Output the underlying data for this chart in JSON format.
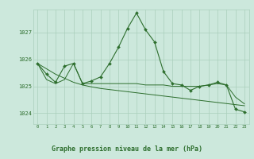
{
  "title": "Graphe pression niveau de la mer (hPa)",
  "bg_color": "#cce8dc",
  "grid_color": "#aacfbc",
  "line_color": "#2d6e2d",
  "ylim": [
    1023.6,
    1027.85
  ],
  "yticks": [
    1024,
    1025,
    1026,
    1027
  ],
  "xticks": [
    0,
    1,
    2,
    3,
    4,
    5,
    6,
    7,
    8,
    9,
    10,
    11,
    12,
    13,
    14,
    15,
    16,
    17,
    18,
    19,
    20,
    21,
    22,
    23
  ],
  "main_series": [
    1025.85,
    1025.45,
    1025.15,
    1025.75,
    1025.85,
    1025.1,
    1025.2,
    1025.35,
    1025.85,
    1026.45,
    1027.15,
    1027.72,
    1027.1,
    1026.65,
    1025.55,
    1025.1,
    1025.05,
    1024.85,
    1025.0,
    1025.05,
    1025.15,
    1025.05,
    1024.15,
    1024.05
  ],
  "trend_line": [
    1025.85,
    1025.65,
    1025.45,
    1025.3,
    1025.15,
    1025.05,
    1024.98,
    1024.92,
    1024.88,
    1024.84,
    1024.8,
    1024.76,
    1024.72,
    1024.68,
    1024.64,
    1024.6,
    1024.56,
    1024.52,
    1024.48,
    1024.44,
    1024.4,
    1024.36,
    1024.32,
    1024.28
  ],
  "flat_line": [
    1025.85,
    1025.25,
    1025.1,
    1025.25,
    1025.85,
    1025.1,
    1025.1,
    1025.1,
    1025.1,
    1025.1,
    1025.1,
    1025.1,
    1025.05,
    1025.05,
    1025.05,
    1025.0,
    1025.0,
    1025.0,
    1025.0,
    1025.05,
    1025.1,
    1025.05,
    1024.6,
    1024.35
  ]
}
